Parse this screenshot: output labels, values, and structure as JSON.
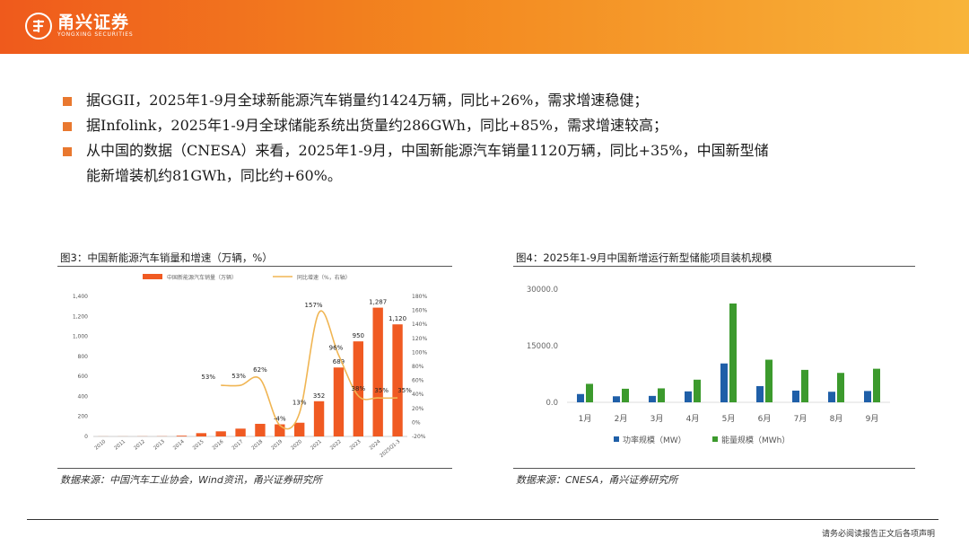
{
  "header": {
    "brand_cn": "甬兴证券",
    "brand_en": "YONGXING SECURITIES",
    "gradient_colors": [
      "#ef5a1c",
      "#f8b43a"
    ]
  },
  "bullets": [
    "据GGII，2025年1-9月全球新能源汽车销量约1424万辆，同比+26%，需求增速稳健；",
    "据Infolink，2025年1-9月全球储能系统出货量约286GWh，同比+85%，需求增速较高；",
    "从中国的数据（CNESA）来看，2025年1-9月，中国新能源汽车销量1120万辆，同比+35%，中国新型储",
    "能新增装机约81GWh，同比约+60%。"
  ],
  "figures": {
    "fig3": {
      "title": "图3：中国新能源汽车销量和增速（万辆，%）",
      "source": "数据来源：中国汽车工业协会，Wind资讯，甬兴证券研究所"
    },
    "fig4": {
      "title": "图4：2025年1-9月中国新增运行新型储能项目装机规模",
      "source": "数据来源：CNESA，甬兴证券研究所"
    }
  },
  "disclaimer": "请务必阅读报告正文后各项声明",
  "chart_data": [
    {
      "type": "bar",
      "categories": [
        "2010",
        "2011",
        "2012",
        "2013",
        "2014",
        "2015",
        "2016",
        "2017",
        "2018",
        "2019",
        "2020",
        "2021",
        "2022",
        "2023",
        "2024",
        "2025Q1-3"
      ],
      "series": [
        {
          "name": "中国新能源汽车销量（万辆）",
          "values": [
            0.8,
            0.8,
            1.3,
            1.8,
            7.5,
            33,
            51,
            78,
            126,
            121,
            137,
            352,
            689,
            950,
            1287,
            1120
          ],
          "color": "#f05a22"
        },
        {
          "name": "同比增速（%，右轴）",
          "type": "line",
          "values": [
            null,
            null,
            null,
            null,
            null,
            null,
            53,
            53,
            62,
            -4,
            13,
            157,
            96,
            38,
            35,
            35
          ],
          "color": "#f0b553"
        }
      ],
      "data_labels": {
        "bars": [
          "352",
          "689",
          "950",
          "1,287",
          "1,120"
        ],
        "bar_indices": [
          11,
          12,
          13,
          14,
          15
        ],
        "line": [
          "53%",
          "53%",
          "62%",
          "-4%",
          "13%",
          "157%",
          "96%",
          "38%",
          "35%",
          "35%"
        ],
        "line_indices": [
          6,
          7,
          8,
          9,
          10,
          11,
          12,
          13,
          14,
          15
        ]
      },
      "y_ticks": [
        "0",
        "200",
        "400",
        "600",
        "800",
        "1,000",
        "1,200",
        "1,400"
      ],
      "y2_ticks": [
        "-20%",
        "0%",
        "20%",
        "40%",
        "60%",
        "80%",
        "100%",
        "120%",
        "140%",
        "160%",
        "180%"
      ],
      "ylim": [
        0,
        1400
      ],
      "y2lim": [
        -20,
        180
      ],
      "legend_position": "top"
    },
    {
      "type": "bar",
      "categories": [
        "1月",
        "2月",
        "3月",
        "4月",
        "5月",
        "6月",
        "7月",
        "8月",
        "9月"
      ],
      "series": [
        {
          "name": "功率规模（MW）",
          "values": [
            2200,
            1600,
            1700,
            2900,
            10300,
            4300,
            3100,
            2800,
            3000
          ],
          "color": "#1f5fa8"
        },
        {
          "name": "能量规模（MWh）",
          "values": [
            4900,
            3600,
            3700,
            6000,
            26200,
            11300,
            8600,
            7800,
            8900
          ],
          "color": "#3c9a2d"
        }
      ],
      "y_ticks": [
        "0.0",
        "15000.0",
        "30000.0"
      ],
      "ylim": [
        0,
        30000
      ],
      "legend_position": "bottom"
    }
  ]
}
